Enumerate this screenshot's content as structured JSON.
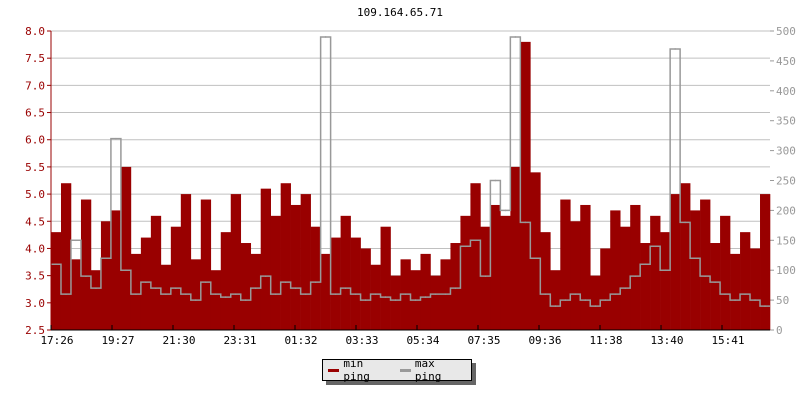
{
  "chart_data": {
    "type": "area",
    "title": "109.164.65.71",
    "x_tick_labels": [
      "17:26",
      "19:27",
      "21:30",
      "23:31",
      "01:32",
      "03:33",
      "05:34",
      "07:35",
      "09:36",
      "11:38",
      "13:40",
      "15:41"
    ],
    "y_left": {
      "min": 2.5,
      "max": 8.0,
      "ticks": [
        "2.5",
        "3.0",
        "3.5",
        "4.0",
        "4.5",
        "5.0",
        "5.5",
        "6.0",
        "6.5",
        "7.0",
        "7.5",
        "8.0"
      ],
      "color": "#990000"
    },
    "y_right": {
      "min": 0,
      "max": 500,
      "ticks": [
        "0",
        "50",
        "100",
        "150",
        "200",
        "250",
        "300",
        "350",
        "400",
        "450",
        "500"
      ],
      "color": "#999999"
    },
    "grid": true,
    "legend_placement": "bottom-center",
    "series": [
      {
        "name": "min ping",
        "axis": "left",
        "color": "#990000",
        "values": [
          4.3,
          5.2,
          3.8,
          4.9,
          3.6,
          4.5,
          4.7,
          5.5,
          3.9,
          4.2,
          4.6,
          3.7,
          4.4,
          5.0,
          3.8,
          4.9,
          3.6,
          4.3,
          5.0,
          4.1,
          3.9,
          5.1,
          4.6,
          5.2,
          4.8,
          5.0,
          4.4,
          3.9,
          4.2,
          4.6,
          4.2,
          4.0,
          3.7,
          4.4,
          3.5,
          3.8,
          3.6,
          3.9,
          3.5,
          3.8,
          4.1,
          4.6,
          5.2,
          4.4,
          4.8,
          4.6,
          5.5,
          7.8,
          5.4,
          4.3,
          3.6,
          4.9,
          4.5,
          4.8,
          3.5,
          4.0,
          4.7,
          4.4,
          4.8,
          4.1,
          4.6,
          4.3,
          5.0,
          5.2,
          4.7,
          4.9,
          4.1,
          4.6,
          3.9,
          4.3,
          4.0,
          5.0
        ]
      },
      {
        "name": "max ping",
        "axis": "right",
        "color": "#999999",
        "values": [
          110,
          60,
          150,
          90,
          70,
          120,
          320,
          100,
          60,
          80,
          70,
          60,
          70,
          60,
          50,
          80,
          60,
          55,
          60,
          50,
          70,
          90,
          60,
          80,
          70,
          60,
          80,
          490,
          60,
          70,
          60,
          50,
          60,
          55,
          50,
          60,
          50,
          55,
          60,
          60,
          70,
          140,
          150,
          90,
          250,
          200,
          490,
          180,
          120,
          60,
          40,
          50,
          60,
          50,
          40,
          50,
          60,
          70,
          90,
          110,
          140,
          100,
          470,
          180,
          120,
          90,
          80,
          60,
          50,
          60,
          50,
          40
        ]
      }
    ]
  }
}
